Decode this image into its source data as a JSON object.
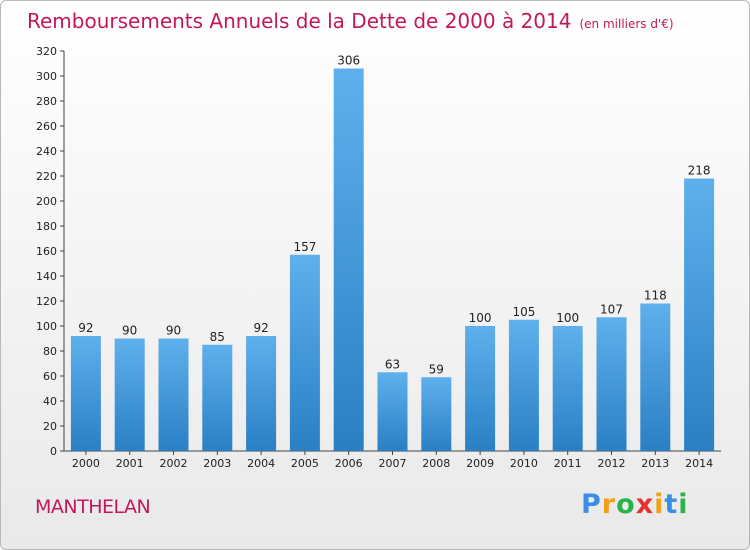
{
  "title": {
    "main": "Remboursements Annuels de la Dette de 2000 à 2014",
    "unit": "(en milliers d'€)"
  },
  "commune": "MANTHELAN",
  "logo": {
    "text": "Proxiti",
    "colors": [
      "#3a8ee6",
      "#f2a019",
      "#2bb24c",
      "#e7312f",
      "#f2a019",
      "#3a8ee6",
      "#2bb24c"
    ]
  },
  "colors": {
    "title": "#c2185b",
    "bar_top": "#5fb0ec",
    "bar_bottom": "#2a7fc4"
  },
  "chart_data": {
    "type": "bar",
    "title": "Remboursements Annuels de la Dette de 2000 à 2014",
    "xlabel": "",
    "ylabel": "",
    "categories": [
      "2000",
      "2001",
      "2002",
      "2003",
      "2004",
      "2005",
      "2006",
      "2007",
      "2008",
      "2009",
      "2010",
      "2011",
      "2012",
      "2013",
      "2014"
    ],
    "values": [
      92,
      90,
      90,
      85,
      92,
      157,
      306,
      63,
      59,
      100,
      105,
      100,
      107,
      118,
      218
    ],
    "ylim": [
      0,
      320
    ],
    "yticks": [
      0,
      20,
      40,
      60,
      80,
      100,
      120,
      140,
      160,
      180,
      200,
      220,
      240,
      260,
      280,
      300,
      320
    ],
    "grid": false,
    "legend": "none"
  }
}
